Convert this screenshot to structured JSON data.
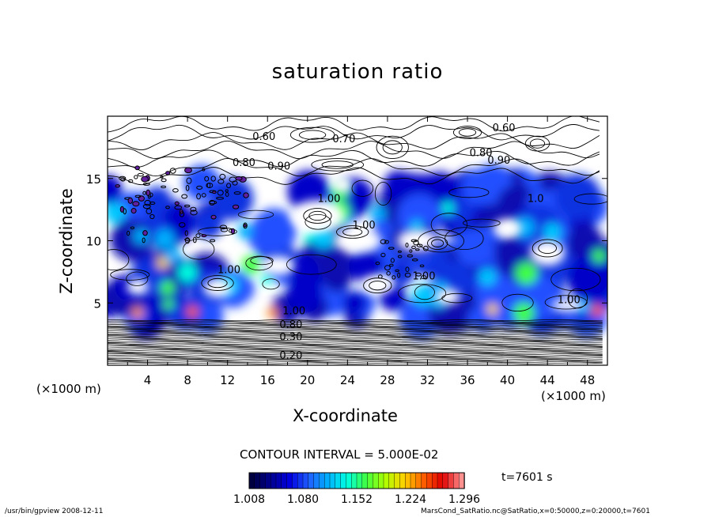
{
  "chart_data": {
    "type": "heatmap",
    "title": "saturation ratio",
    "xlabel": "X-coordinate",
    "ylabel": "Z-coordinate",
    "x_unit": "(×1000 m)",
    "xlim": [
      0,
      50
    ],
    "ylim": [
      0,
      20
    ],
    "x_ticks": [
      "4",
      "8",
      "12",
      "16",
      "20",
      "24",
      "28",
      "32",
      "36",
      "40",
      "44",
      "48"
    ],
    "y_ticks": [
      "5",
      "10",
      "15"
    ],
    "contour_interval": "CONTOUR INTERVAL = 5.000E-02",
    "colorbar": {
      "min": 1.008,
      "max": 1.296,
      "ticks": [
        "1.008",
        "1.080",
        "1.152",
        "1.224",
        "1.296"
      ],
      "colors": [
        "#000040",
        "#000090",
        "#0000e0",
        "#2060ff",
        "#00b0ff",
        "#00ffe0",
        "#40ff40",
        "#b0ff00",
        "#ffd000",
        "#ff6000",
        "#e00000",
        "#ff9090"
      ]
    },
    "contour_labels": [
      {
        "x": 14.5,
        "y": 18.1,
        "text": "0.60"
      },
      {
        "x": 22.5,
        "y": 17.9,
        "text": "0.70"
      },
      {
        "x": 38.5,
        "y": 18.8,
        "text": "0.60"
      },
      {
        "x": 12.5,
        "y": 16.0,
        "text": "0.80"
      },
      {
        "x": 16.0,
        "y": 15.7,
        "text": "0.90"
      },
      {
        "x": 36.2,
        "y": 16.8,
        "text": "0.80"
      },
      {
        "x": 38.0,
        "y": 16.2,
        "text": "0.90"
      },
      {
        "x": 21.0,
        "y": 13.1,
        "text": "1.00"
      },
      {
        "x": 24.5,
        "y": 11.0,
        "text": "1.00"
      },
      {
        "x": 42.0,
        "y": 13.1,
        "text": "1.0"
      },
      {
        "x": 11.0,
        "y": 7.4,
        "text": "1.00"
      },
      {
        "x": 30.5,
        "y": 6.9,
        "text": "1.00"
      },
      {
        "x": 45.0,
        "y": 5.0,
        "text": "1.00"
      },
      {
        "x": 17.5,
        "y": 4.1,
        "text": "1.00"
      },
      {
        "x": 17.2,
        "y": 3.0,
        "text": "0.80"
      },
      {
        "x": 17.2,
        "y": 2.0,
        "text": "0.30"
      },
      {
        "x": 17.2,
        "y": 0.5,
        "text": "0.20"
      }
    ]
  },
  "time_label": "t=7601 s",
  "footer": {
    "left": "/usr/bin/gpview   2008-12-11",
    "right": "MarsCond_SatRatio.nc@SatRatio,x=0:50000,z=0:20000,t=7601"
  }
}
